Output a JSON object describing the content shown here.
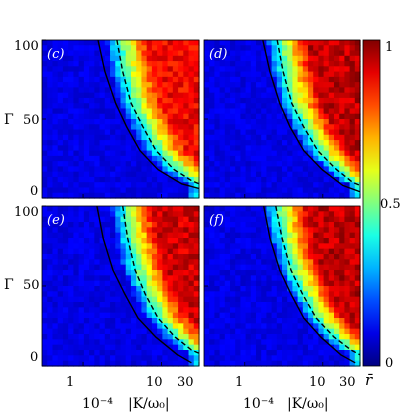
{
  "chart_data": {
    "type": "heatmap",
    "colormap": "jet",
    "color_range": [
      0,
      1
    ],
    "colorbar_ticks": [
      "1",
      "0.5",
      "0"
    ],
    "colorbar_label": "r̄",
    "x_scale": "log",
    "xlim": [
      0.0001,
      30
    ],
    "ylim": [
      0,
      100
    ],
    "x_tick_labels": [
      "1",
      "10",
      "30"
    ],
    "x_prefix_label": "10⁻⁴",
    "xlabel": "|K/ω₀|",
    "y_tick_labels": [
      "100",
      "50",
      "0"
    ],
    "ylabel": "Γ",
    "panels": [
      {
        "label": "(c)",
        "solid_curve": {
          "x": [
            1.55,
            1.9,
            2.6,
            3.6,
            5.3,
            9.0,
            18,
            30
          ],
          "y": [
            100,
            80,
            60,
            45,
            30,
            18,
            9,
            6
          ]
        },
        "dashed_curve": {
          "x": [
            2.7,
            3.2,
            4.1,
            5.8,
            8.5,
            14.5,
            24,
            30
          ],
          "y": [
            100,
            80,
            60,
            45,
            30,
            18,
            11,
            9
          ]
        },
        "transition": {
          "x0": 4.6,
          "x1": 24,
          "gamma": 0.58,
          "peak": 0.88
        }
      },
      {
        "label": "(d)",
        "solid_curve": {
          "x": [
            1.7,
            2.1,
            2.8,
            3.8,
            5.7,
            9.8,
            18,
            30
          ],
          "y": [
            100,
            80,
            60,
            45,
            30,
            18,
            8,
            4
          ]
        },
        "dashed_curve": {
          "x": [
            2.6,
            3.1,
            4.0,
            5.7,
            8.6,
            15,
            24,
            30
          ],
          "y": [
            100,
            80,
            60,
            45,
            30,
            18,
            10,
            8
          ]
        },
        "transition": {
          "x0": 2.6,
          "x1": 15,
          "gamma": 0.5,
          "peak": 0.94
        }
      },
      {
        "label": "(e)",
        "solid_curve": {
          "x": [
            1.5,
            1.8,
            2.4,
            3.4,
            5.0,
            8.5,
            16,
            24
          ],
          "y": [
            100,
            80,
            60,
            45,
            30,
            18,
            7,
            2
          ]
        },
        "dashed_curve": {
          "x": [
            3.2,
            3.7,
            4.6,
            6.2,
            9.0,
            15,
            24,
            30
          ],
          "y": [
            100,
            80,
            60,
            45,
            30,
            18,
            10,
            8
          ]
        },
        "transition": {
          "x0": 2.7,
          "x1": 24,
          "gamma": 0.55,
          "peak": 0.92
        }
      },
      {
        "label": "(f)",
        "solid_curve": {
          "x": [
            1.75,
            2.1,
            2.8,
            3.9,
            5.7,
            9.5,
            17,
            26
          ],
          "y": [
            100,
            80,
            60,
            45,
            30,
            18,
            7,
            2
          ]
        },
        "dashed_curve": {
          "x": [
            2.5,
            3.0,
            3.9,
            5.5,
            8.2,
            14,
            23,
            30
          ],
          "y": [
            100,
            80,
            60,
            45,
            30,
            18,
            10,
            7
          ]
        },
        "transition": {
          "x0": 2.5,
          "x1": 20,
          "gamma": 0.5,
          "peak": 0.94
        }
      }
    ]
  }
}
